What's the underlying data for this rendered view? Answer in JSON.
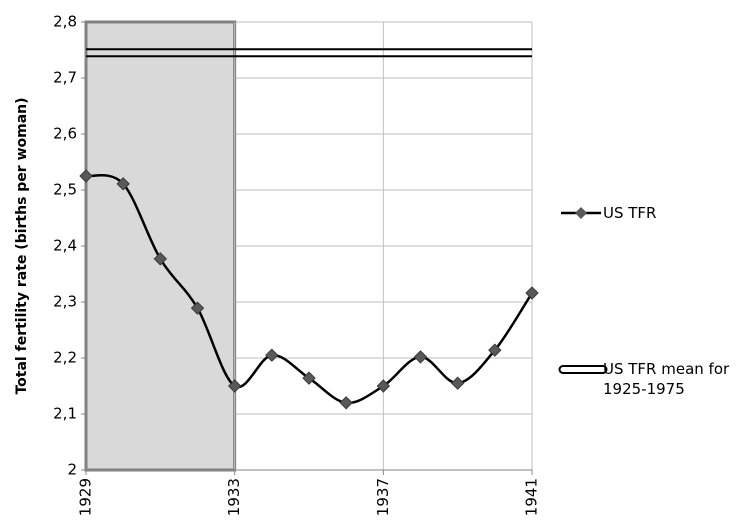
{
  "chart_data": {
    "type": "line",
    "y_label": "Total fertility rate (births per woman)",
    "x": [
      1929,
      1930,
      1931,
      1932,
      1933,
      1934,
      1935,
      1936,
      1937,
      1938,
      1939,
      1940,
      1941
    ],
    "series": [
      {
        "name": "US TFR",
        "color": "#000000",
        "values": [
          2.525,
          2.511,
          2.377,
          2.289,
          2.15,
          2.205,
          2.164,
          2.12,
          2.15,
          2.202,
          2.155,
          2.214,
          2.316
        ]
      }
    ],
    "mean_line": {
      "name": "US TFR mean for 1925-1975",
      "value": 2.745
    },
    "highlight": [
      1929,
      1933
    ],
    "xlim": [
      1929,
      1941
    ],
    "xticks": [
      1929,
      1933,
      1937,
      1941
    ],
    "ylim": [
      2,
      2.8
    ],
    "yticks": [
      2,
      {
        "value": 2.1,
        "label": "2,1"
      },
      {
        "value": 2.2,
        "label": "2,2"
      },
      {
        "value": 2.3,
        "label": "2,3"
      },
      {
        "value": 2.4,
        "label": "2,4"
      },
      {
        "value": 2.5,
        "label": "2,5"
      },
      {
        "value": 2.6,
        "label": "2,6"
      },
      {
        "value": 2.7,
        "label": "2,7"
      },
      {
        "value": 2.8,
        "label": "2,8"
      }
    ],
    "grid": true
  }
}
